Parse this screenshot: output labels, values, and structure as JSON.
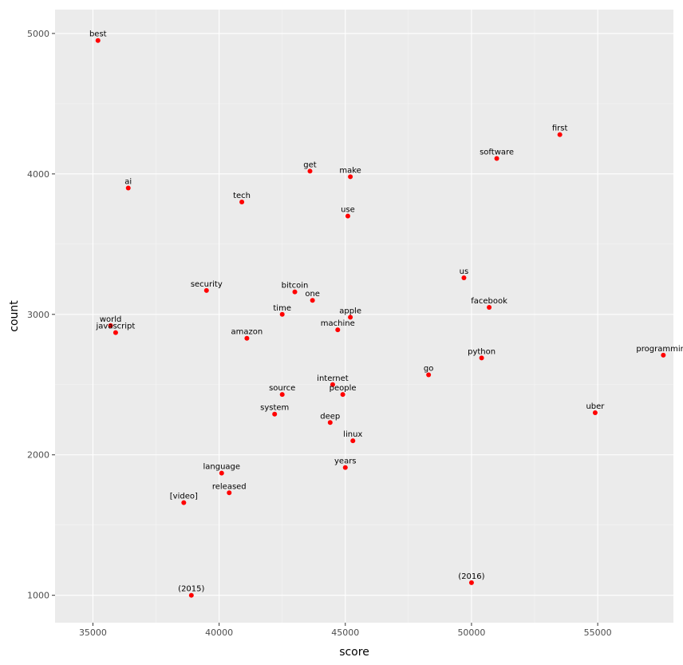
{
  "chart_data": {
    "type": "scatter",
    "title": "",
    "xlabel": "score",
    "ylabel": "count",
    "xlim": [
      33500,
      58000
    ],
    "ylim": [
      805,
      5170
    ],
    "xticks": [
      35000,
      40000,
      45000,
      50000,
      55000
    ],
    "yticks": [
      1000,
      2000,
      3000,
      4000,
      5000
    ],
    "grid": true,
    "colors": {
      "panel": "#ebebeb",
      "grid_major": "#ffffff",
      "grid_minor": "#f5f5f5",
      "point": "#ff0000",
      "tick_text": "#4d4d4d"
    },
    "points": [
      {
        "label": "best",
        "x": 35200,
        "y": 4950
      },
      {
        "label": "first",
        "x": 53500,
        "y": 4280
      },
      {
        "label": "software",
        "x": 51000,
        "y": 4110
      },
      {
        "label": "get",
        "x": 43600,
        "y": 4020
      },
      {
        "label": "make",
        "x": 45200,
        "y": 3980
      },
      {
        "label": "ai",
        "x": 36400,
        "y": 3900
      },
      {
        "label": "tech",
        "x": 40900,
        "y": 3800
      },
      {
        "label": "use",
        "x": 45100,
        "y": 3700
      },
      {
        "label": "us",
        "x": 49700,
        "y": 3260
      },
      {
        "label": "security",
        "x": 39500,
        "y": 3170
      },
      {
        "label": "bitcoin",
        "x": 43000,
        "y": 3160
      },
      {
        "label": "one",
        "x": 43700,
        "y": 3100
      },
      {
        "label": "facebook",
        "x": 50700,
        "y": 3050
      },
      {
        "label": "time",
        "x": 42500,
        "y": 3000
      },
      {
        "label": "apple",
        "x": 45200,
        "y": 2980
      },
      {
        "label": "world",
        "x": 35700,
        "y": 2920
      },
      {
        "label": "machine",
        "x": 44700,
        "y": 2890
      },
      {
        "label": "javascript",
        "x": 35900,
        "y": 2870
      },
      {
        "label": "amazon",
        "x": 41100,
        "y": 2830
      },
      {
        "label": "programming",
        "x": 57600,
        "y": 2710
      },
      {
        "label": "python",
        "x": 50400,
        "y": 2690
      },
      {
        "label": "go",
        "x": 48300,
        "y": 2570
      },
      {
        "label": "internet",
        "x": 44500,
        "y": 2500
      },
      {
        "label": "source",
        "x": 42500,
        "y": 2430
      },
      {
        "label": "people",
        "x": 44900,
        "y": 2430
      },
      {
        "label": "uber",
        "x": 54900,
        "y": 2300
      },
      {
        "label": "system",
        "x": 42200,
        "y": 2290
      },
      {
        "label": "deep",
        "x": 44400,
        "y": 2230
      },
      {
        "label": "linux",
        "x": 45300,
        "y": 2100
      },
      {
        "label": "years",
        "x": 45000,
        "y": 1910
      },
      {
        "label": "language",
        "x": 40100,
        "y": 1870
      },
      {
        "label": "released",
        "x": 40400,
        "y": 1730
      },
      {
        "label": "[video]",
        "x": 38600,
        "y": 1660
      },
      {
        "label": "(2016)",
        "x": 50000,
        "y": 1090
      },
      {
        "label": "(2015)",
        "x": 38900,
        "y": 1000
      }
    ]
  }
}
